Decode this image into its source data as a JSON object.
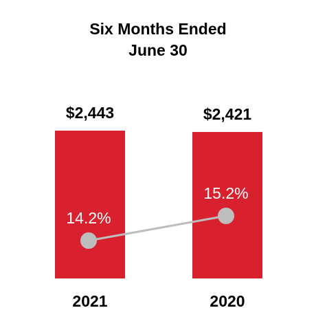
{
  "chart_data": {
    "type": "bar",
    "title": [
      "Six Months Ended",
      "June 30"
    ],
    "categories": [
      "2021",
      "2020"
    ],
    "values": [
      2443,
      2421
    ],
    "value_labels": [
      "$2,443",
      "$2,421"
    ],
    "color": "#d9202f",
    "line": {
      "values": [
        14.2,
        15.2
      ],
      "value_labels": [
        "14.2%",
        "15.2%"
      ],
      "color": "#bdbdbd"
    }
  }
}
